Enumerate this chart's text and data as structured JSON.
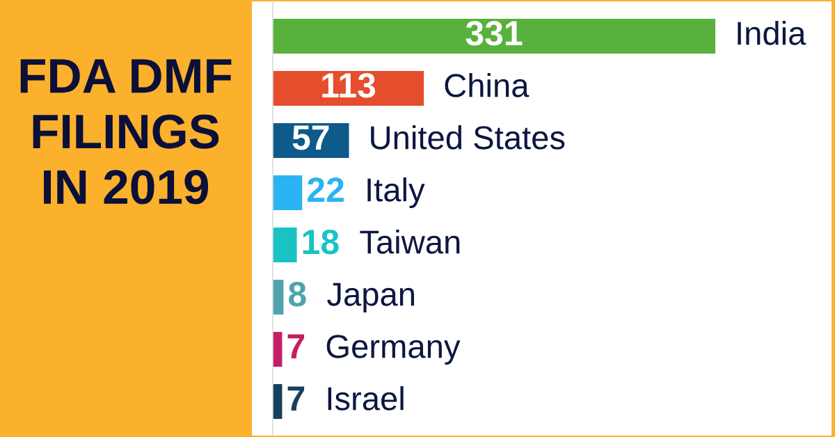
{
  "chart_data": {
    "type": "bar",
    "orientation": "horizontal",
    "title": "FDA DMF FILINGS IN 2019",
    "categories": [
      "India",
      "China",
      "United States",
      "Italy",
      "Taiwan",
      "Japan",
      "Germany",
      "Israel"
    ],
    "values": [
      331,
      113,
      57,
      22,
      18,
      8,
      7,
      7
    ],
    "colors": [
      "#59b13d",
      "#e54e2d",
      "#0e5a8a",
      "#2bb3f3",
      "#19c3c4",
      "#4fa3ad",
      "#c41f64",
      "#17405e"
    ],
    "data_labels": true,
    "tick_labels": "y"
  }
}
